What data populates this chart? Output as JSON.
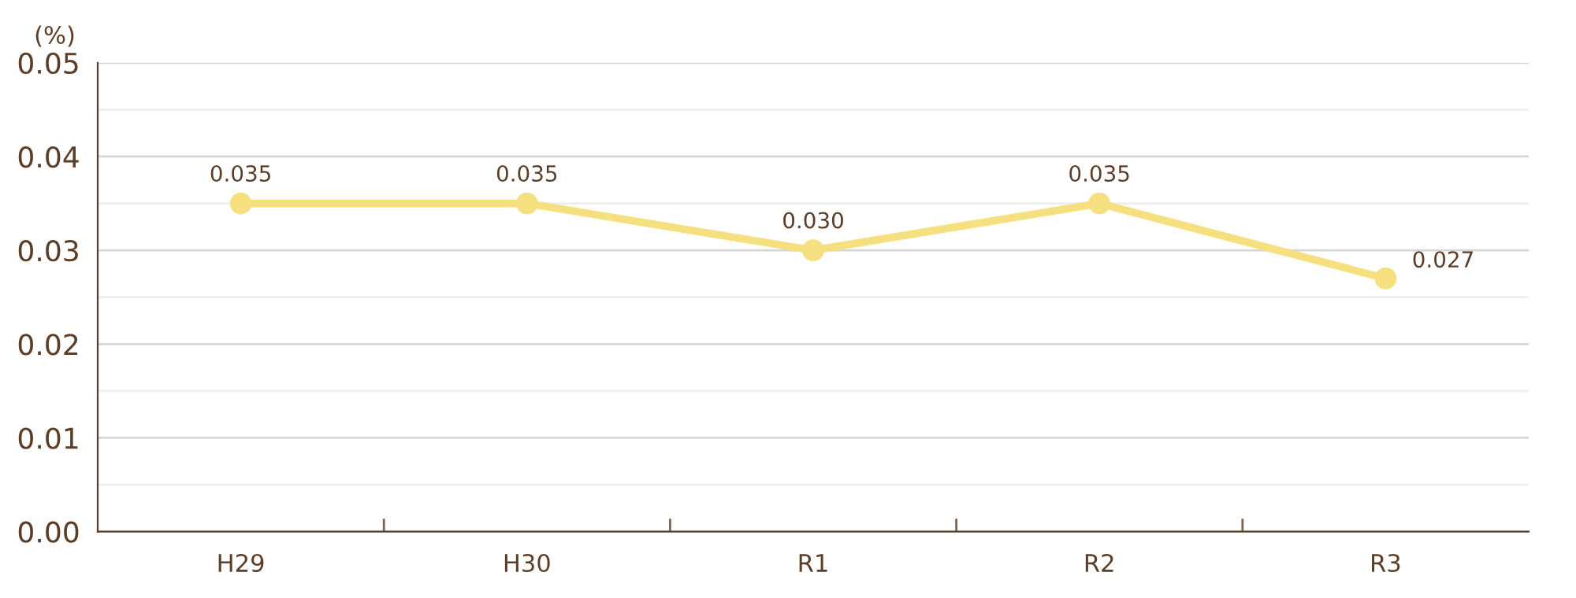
{
  "chart_data": {
    "type": "line",
    "ylabel": "(%)",
    "categories": [
      "H29",
      "H30",
      "R1",
      "R2",
      "R3"
    ],
    "series": [
      {
        "color": "#f5df7e",
        "values": [
          0.035,
          0.035,
          0.03,
          0.035,
          0.027
        ],
        "value_labels": [
          "0.035",
          "0.035",
          "0.030",
          "0.035",
          "0.027"
        ]
      }
    ],
    "ylim": [
      0,
      0.05
    ],
    "yticks": [
      "0.00",
      {
        "value": 0.005,
        "label": null
      },
      {
        "value": 0.01,
        "label": "0.01"
      },
      {
        "value": 0.015,
        "label": null
      },
      {
        "value": 0.02,
        "label": "0.02"
      },
      {
        "value": 0.025,
        "label": null
      },
      {
        "value": 0.03,
        "label": "0.03"
      },
      {
        "value": 0.035,
        "label": null
      },
      {
        "value": 0.04,
        "label": "0.04"
      },
      {
        "value": 0.045,
        "label": null
      },
      {
        "value": 0.05,
        "label": "0.05"
      }
    ],
    "grid": "y",
    "marker": "circle",
    "line_style": "solid"
  }
}
